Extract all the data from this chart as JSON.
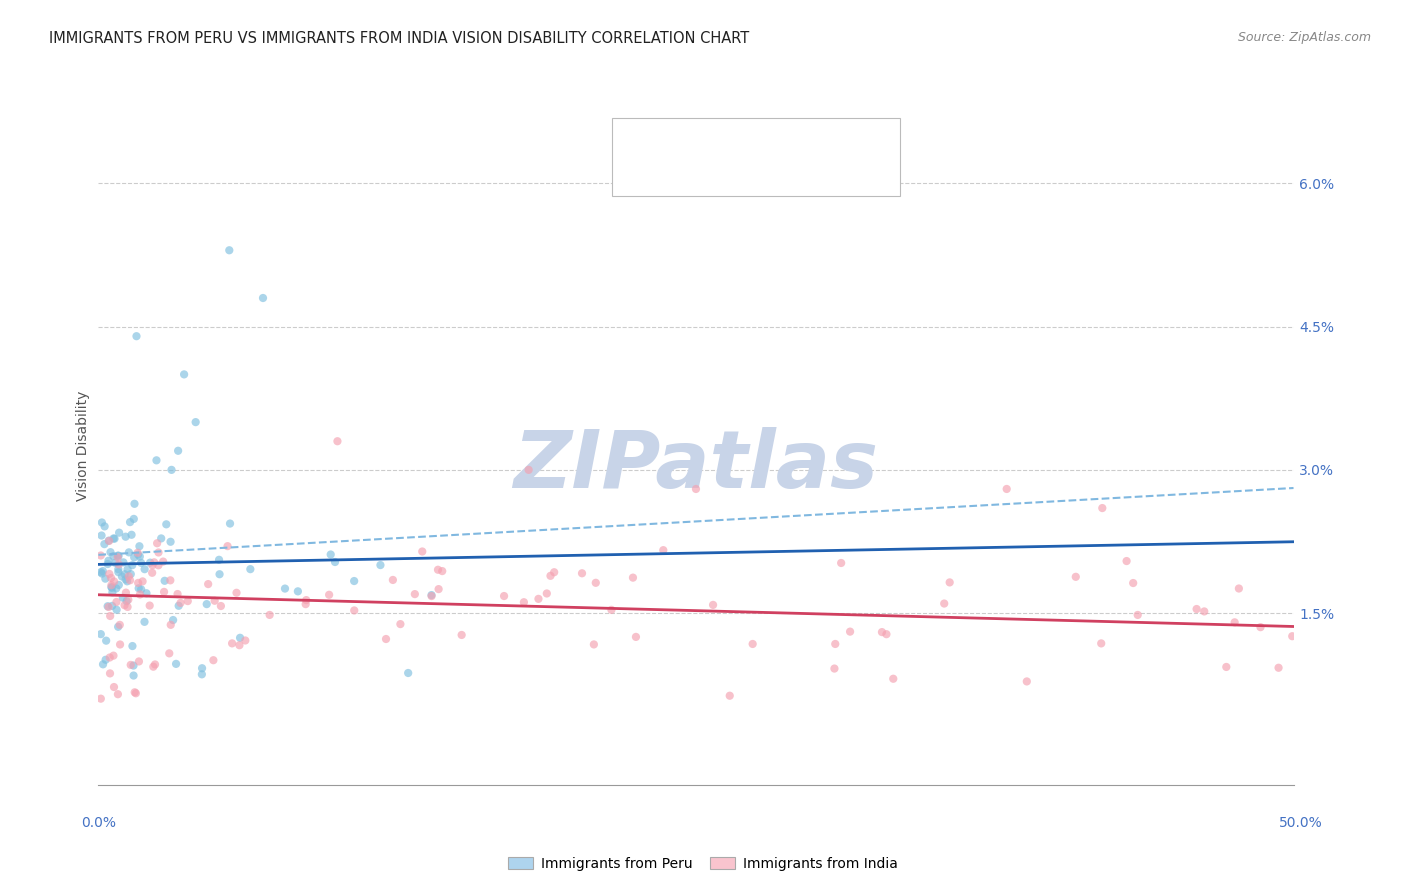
{
  "title": "IMMIGRANTS FROM PERU VS IMMIGRANTS FROM INDIA VISION DISABILITY CORRELATION CHART",
  "source": "Source: ZipAtlas.com",
  "ylabel": "Vision Disability",
  "ylim": [
    -0.003,
    0.068
  ],
  "xlim": [
    0.0,
    0.5
  ],
  "legend_label1": "Immigrants from Peru",
  "legend_label2": "Immigrants from India",
  "color_peru": "#7fbfdf",
  "color_india": "#f4a0b0",
  "color_peru_fill": "#aed4ee",
  "color_india_fill": "#f9c4ce",
  "watermark": "ZIPatlas",
  "watermark_color": "#c8d4e8",
  "background_color": "#ffffff",
  "grid_color": "#cccccc",
  "scatter_alpha": 0.65,
  "scatter_size": 35,
  "peru_trend_color": "#2060b0",
  "india_trend_color": "#d04060",
  "dashed_color": "#80b8e0"
}
